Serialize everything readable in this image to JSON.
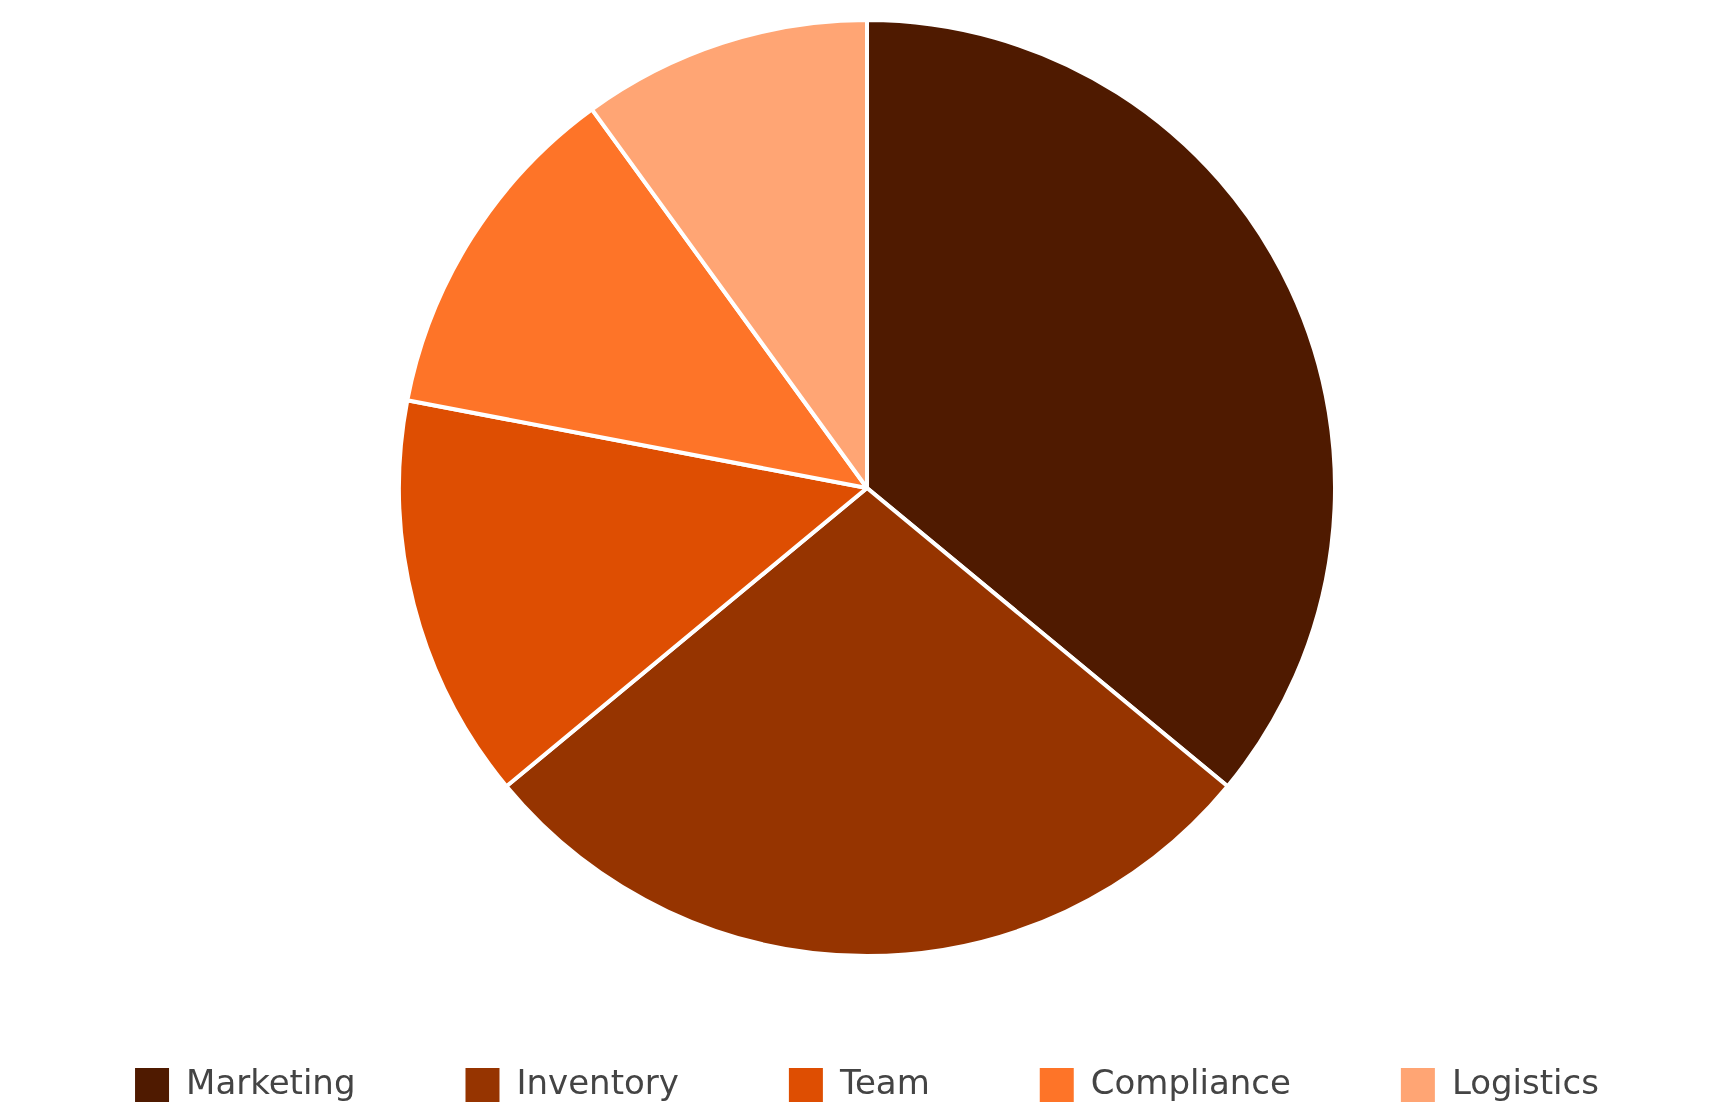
{
  "chart_data": {
    "type": "pie",
    "categories": [
      "Marketing",
      "Inventory",
      "Team",
      "Compliance",
      "Logistics"
    ],
    "values": [
      36,
      28,
      14,
      12,
      10
    ],
    "colors": [
      "#4f1a00",
      "#963400",
      "#de4e02",
      "#fe7428",
      "#ffa574"
    ],
    "legend": "bottom"
  }
}
